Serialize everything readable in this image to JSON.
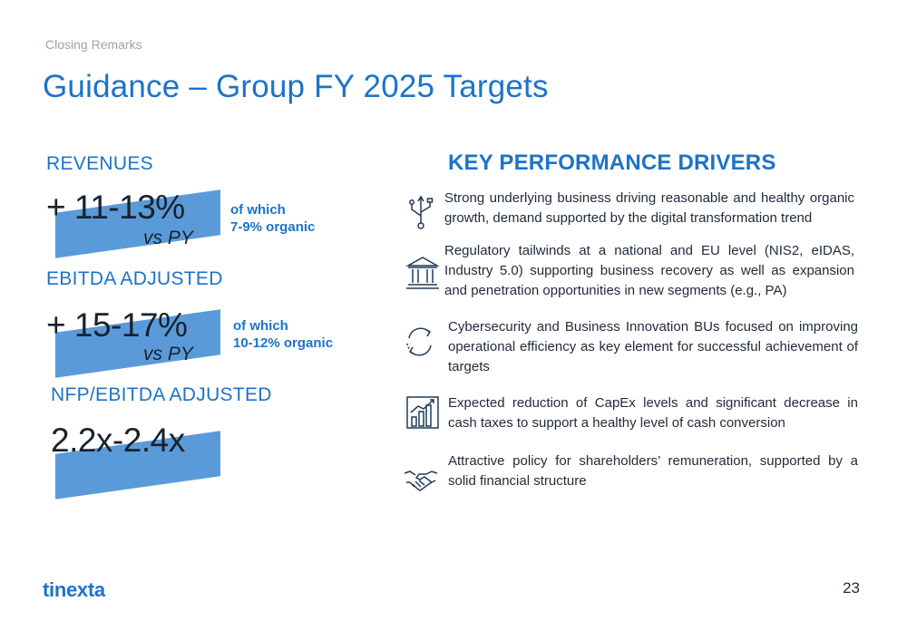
{
  "header": {
    "section": "Closing Remarks",
    "title": "Guidance – Group FY 2025 Targets"
  },
  "metrics": [
    {
      "label": "REVENUES",
      "value": "+ 11-13%",
      "comparison": "vs PY",
      "note_line1": "of which",
      "note_line2": "7-9% organic"
    },
    {
      "label": "EBITDA ADJUSTED",
      "value": "+ 15-17%",
      "comparison": "vs PY",
      "note_line1": "of which",
      "note_line2": "10-12% organic"
    },
    {
      "label": "NFP/EBITDA ADJUSTED",
      "value": "2.2x-2.4x"
    }
  ],
  "drivers": {
    "title": "KEY PERFORMANCE DRIVERS",
    "items": [
      {
        "icon": "usb-network-icon",
        "text": "Strong underlying business driving reasonable and healthy organic growth, demand supported by the digital transformation trend"
      },
      {
        "icon": "institution-icon",
        "text": "Regulatory tailwinds at a national and EU level (NIS2, eIDAS, Industry 5.0) supporting business recovery as well as expansion and penetration opportunities in new segments (e.g., PA)"
      },
      {
        "icon": "refresh-cycle-icon",
        "text": "Cybersecurity and Business Innovation BUs focused on improving operational efficiency as key element for successful achievement of targets"
      },
      {
        "icon": "growth-chart-icon",
        "text": "Expected reduction of CapEx levels and significant decrease in cash taxes to support a healthy level of cash conversion"
      },
      {
        "icon": "handshake-icon",
        "text": "Attractive policy for shareholders’ remuneration, supported by a solid financial structure"
      }
    ]
  },
  "footer": {
    "logo": "tinexta",
    "page_number": "23"
  },
  "colors": {
    "accent": "#1c73c9",
    "stripe": "#5b9ad9",
    "muted": "#9aa3ad"
  }
}
